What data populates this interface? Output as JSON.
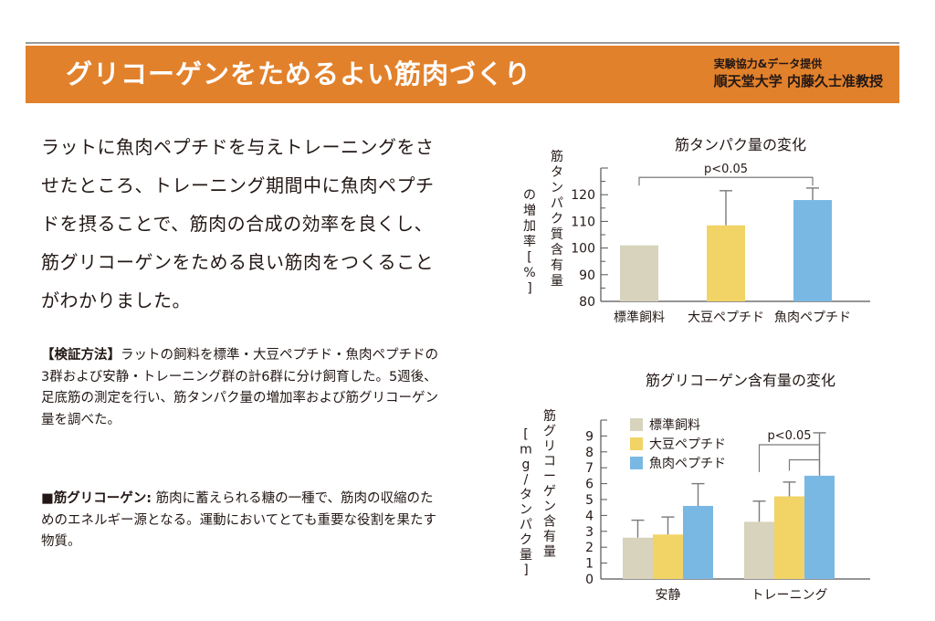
{
  "header": {
    "title": "グリコーゲンをためるよい筋肉づくり",
    "credit_line1": "実験協力&データ提供",
    "credit_line2": "順天堂大学 内藤久士准教授"
  },
  "lead_text": "ラットに魚肉ペプチドを与えトレーニングをさせたところ、トレーニング期間中に魚肉ペプチドを摂ることで、筋肉の合成の効率を良くし、筋グリコーゲンをためる良い筋肉をつくることがわかりました。",
  "method": {
    "heading": "【検証方法】",
    "body": "ラットの飼料を標準・大豆ペプチド・魚肉ペプチドの3群および安静・トレーニング群の計6群に分け飼育した。5週後、足底筋の測定を行い、筋タンパク量の増加率および筋グリコーゲン量を調べた。"
  },
  "glossary": {
    "term": "■筋グリコーゲン:",
    "definition": " 筋肉に蓄えられる糖の一種で、筋肉の収縮のためのエネルギー源となる。運動においてとても重要な役割を果たす物質。"
  },
  "colors": {
    "accent": "#e2812b",
    "standard": "#d7d3bc",
    "soy": "#f2d366",
    "fish": "#7ab8e4"
  },
  "chart_data": [
    {
      "type": "bar",
      "title": "筋タンパク量の変化",
      "ylabel": "筋タンパク質含有量の増加率[%]",
      "categories": [
        "標準飼料",
        "大豆ペプチド",
        "魚肉ペプチド"
      ],
      "values": [
        101,
        108.5,
        118
      ],
      "errors": [
        0,
        13,
        4.5
      ],
      "ylim": [
        80,
        130
      ],
      "yticks": [
        "80",
        "90",
        "100",
        "110",
        "120"
      ],
      "significance": {
        "label": "p<0.05",
        "from": 0,
        "to": 2
      }
    },
    {
      "type": "bar",
      "title": "筋グリコーゲン含有量の変化",
      "ylabel": "筋グリコーゲン含有量[mg/タンパク量]",
      "categories": [
        "安静",
        "トレーニング"
      ],
      "legend": [
        "標準飼料",
        "大豆ペプチド",
        "魚肉ペプチド"
      ],
      "series": [
        {
          "name": "標準飼料",
          "values": [
            2.6,
            3.6
          ],
          "errors": [
            1.1,
            1.3
          ]
        },
        {
          "name": "大豆ペプチド",
          "values": [
            2.8,
            5.2
          ],
          "errors": [
            1.1,
            0.9
          ]
        },
        {
          "name": "魚肉ペプチド",
          "values": [
            4.6,
            6.5
          ],
          "errors": [
            1.4,
            2.7
          ]
        }
      ],
      "ylim": [
        0,
        10
      ],
      "yticks": [
        "0",
        "1",
        "2",
        "3",
        "4",
        "5",
        "6",
        "7",
        "8",
        "9"
      ],
      "significance": {
        "label": "p<0.05",
        "group": "トレーニング"
      }
    }
  ]
}
